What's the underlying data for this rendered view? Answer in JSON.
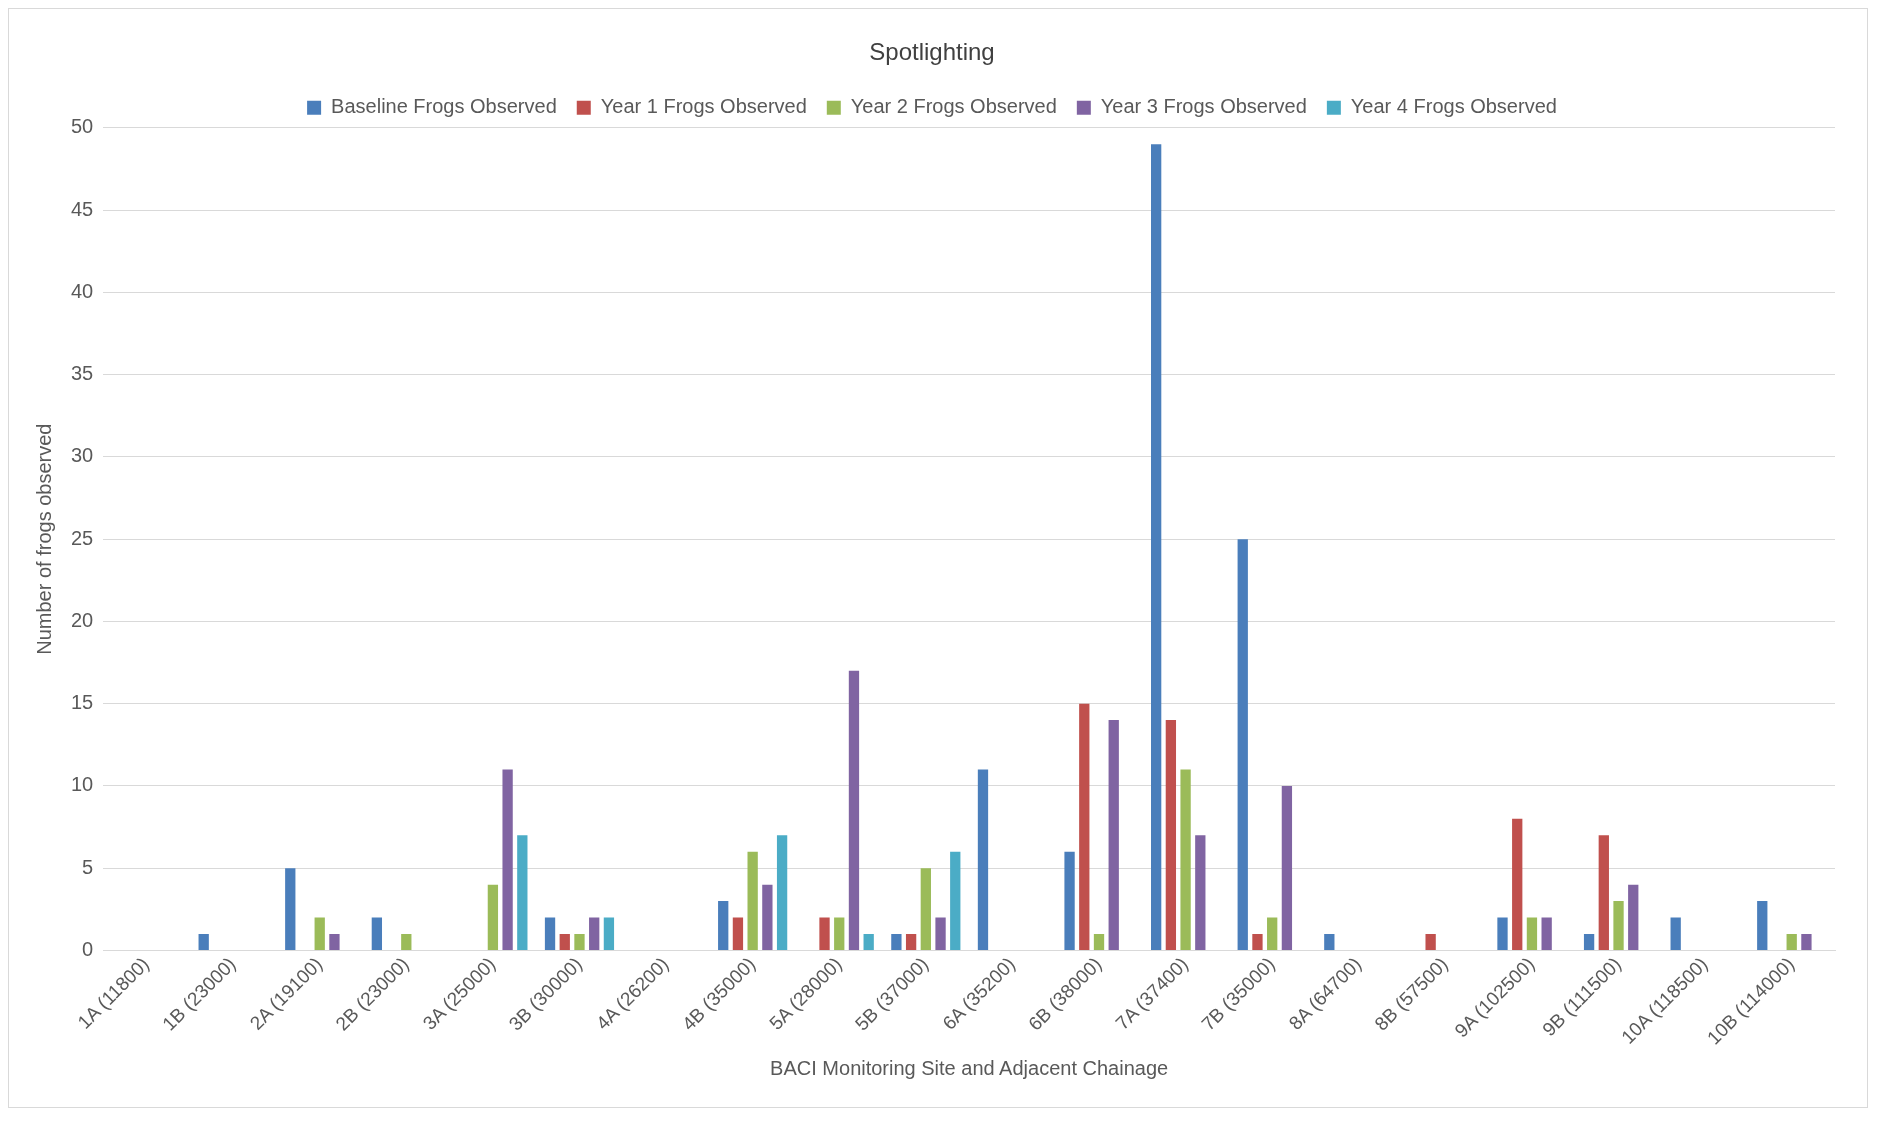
{
  "chart_data": {
    "type": "bar",
    "title": "Spotlighting",
    "xlabel": "BACI Monitoring Site and Adjacent Chainage",
    "ylabel": "Number of frogs observed",
    "categories": [
      "1A (11800)",
      "1B (23000)",
      "2A (19100)",
      "2B (23000)",
      "3A (25000)",
      "3B (30000)",
      "4A (26200)",
      "4B (35000)",
      "5A (28000)",
      "5B (37000)",
      "6A (35200)",
      "6B (38000)",
      "7A (37400)",
      "7B (35000)",
      "8A (64700)",
      "8B (57500)",
      "9A (102500)",
      "9B (111500)",
      "10A (118500)",
      "10B (114000)"
    ],
    "series": [
      {
        "name": "Baseline Frogs Observed",
        "color": "#4a7ebb",
        "values": [
          0,
          1,
          5,
          2,
          0,
          2,
          0,
          3,
          0,
          1,
          11,
          6,
          49,
          25,
          1,
          0,
          2,
          1,
          2,
          3
        ]
      },
      {
        "name": "Year 1 Frogs Observed",
        "color": "#c0504d",
        "values": [
          0,
          0,
          0,
          0,
          0,
          1,
          0,
          2,
          2,
          1,
          0,
          15,
          14,
          1,
          0,
          1,
          8,
          7,
          0,
          0
        ]
      },
      {
        "name": "Year 2 Frogs Observed",
        "color": "#9bbb59",
        "values": [
          0,
          0,
          2,
          1,
          4,
          1,
          0,
          6,
          2,
          5,
          0,
          1,
          11,
          2,
          0,
          0,
          2,
          3,
          0,
          1
        ]
      },
      {
        "name": "Year 3 Frogs Observed",
        "color": "#8064a2",
        "values": [
          0,
          0,
          1,
          0,
          11,
          2,
          0,
          4,
          17,
          2,
          0,
          14,
          7,
          10,
          0,
          0,
          2,
          4,
          0,
          1
        ]
      },
      {
        "name": "Year 4 Frogs Observed",
        "color": "#4bacc6",
        "values": [
          0,
          0,
          0,
          0,
          7,
          2,
          0,
          7,
          1,
          6,
          0,
          0,
          0,
          0,
          0,
          0,
          0,
          0,
          0,
          0
        ]
      }
    ],
    "ylim": [
      0,
      50
    ],
    "yticks": [
      0,
      5,
      10,
      15,
      20,
      25,
      30,
      35,
      40,
      45,
      50
    ],
    "grid": "y",
    "legend": "top"
  }
}
